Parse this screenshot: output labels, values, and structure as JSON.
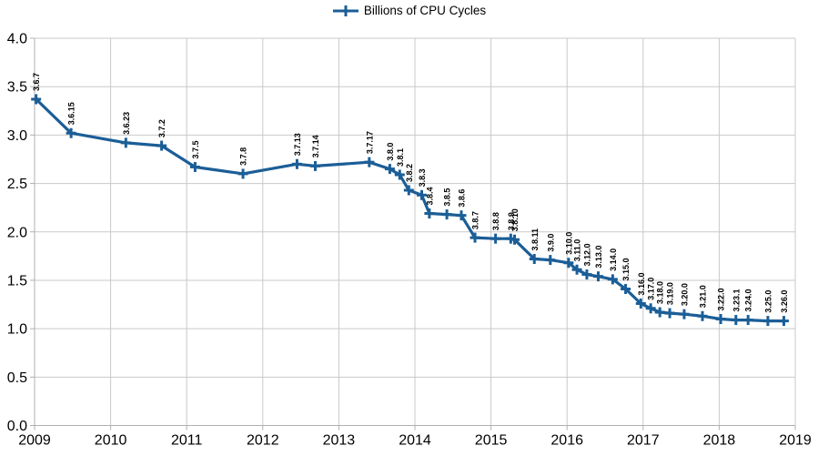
{
  "legend": {
    "label": "Billions of CPU Cycles"
  },
  "colors": {
    "series": "#1b5e97",
    "grid": "#c9c9c9",
    "axis": "#b0b0b0",
    "text": "#000000"
  },
  "chart_data": {
    "type": "line",
    "title": "",
    "xlabel": "",
    "ylabel": "",
    "series_name": "Billions of CPU Cycles",
    "legend_position": "top-center",
    "grid": true,
    "marker": "plus",
    "xlim": [
      2009,
      2019
    ],
    "ylim": [
      0,
      4
    ],
    "x_ticks": [
      2009,
      2010,
      2011,
      2012,
      2013,
      2014,
      2015,
      2016,
      2017,
      2018,
      2019
    ],
    "y_ticks": [
      "0.0",
      "0.5",
      "1.0",
      "1.5",
      "2.0",
      "2.5",
      "3.0",
      "3.5",
      "4.0"
    ],
    "points": [
      {
        "label": "3.6.7",
        "x": 2009.02,
        "y": 3.37
      },
      {
        "label": "3.6.15",
        "x": 2009.48,
        "y": 3.02
      },
      {
        "label": "3.6.23",
        "x": 2010.2,
        "y": 2.92
      },
      {
        "label": "3.7.2",
        "x": 2010.67,
        "y": 2.89
      },
      {
        "label": "3.7.5",
        "x": 2011.11,
        "y": 2.67
      },
      {
        "label": "3.7.8",
        "x": 2011.74,
        "y": 2.6
      },
      {
        "label": "3.7.13",
        "x": 2012.45,
        "y": 2.7
      },
      {
        "label": "3.7.14",
        "x": 2012.69,
        "y": 2.68
      },
      {
        "label": "3.7.17",
        "x": 2013.4,
        "y": 2.72
      },
      {
        "label": "3.8.0",
        "x": 2013.67,
        "y": 2.65
      },
      {
        "label": "3.8.1",
        "x": 2013.8,
        "y": 2.59
      },
      {
        "label": "3.8.2",
        "x": 2013.92,
        "y": 2.43
      },
      {
        "label": "3.8.3",
        "x": 2014.09,
        "y": 2.38
      },
      {
        "label": "3.8.4",
        "x": 2014.19,
        "y": 2.19
      },
      {
        "label": "3.8.5",
        "x": 2014.42,
        "y": 2.18
      },
      {
        "label": "3.8.6",
        "x": 2014.61,
        "y": 2.17
      },
      {
        "label": "3.8.7",
        "x": 2014.79,
        "y": 1.94
      },
      {
        "label": "3.8.8",
        "x": 2015.06,
        "y": 1.93
      },
      {
        "label": "3.8.9",
        "x": 2015.26,
        "y": 1.93
      },
      {
        "label": "3.8.10",
        "x": 2015.31,
        "y": 1.92
      },
      {
        "label": "3.8.11",
        "x": 2015.57,
        "y": 1.72
      },
      {
        "label": "3.9.0",
        "x": 2015.78,
        "y": 1.71
      },
      {
        "label": "3.10.0",
        "x": 2016.02,
        "y": 1.68
      },
      {
        "label": "3.11.0",
        "x": 2016.13,
        "y": 1.61
      },
      {
        "label": "3.12.0",
        "x": 2016.26,
        "y": 1.56
      },
      {
        "label": "3.13.0",
        "x": 2016.41,
        "y": 1.54
      },
      {
        "label": "3.14.0",
        "x": 2016.6,
        "y": 1.51
      },
      {
        "label": "3.15.0",
        "x": 2016.77,
        "y": 1.41
      },
      {
        "label": "3.16.0",
        "x": 2016.97,
        "y": 1.26
      },
      {
        "label": "3.17.0",
        "x": 2017.1,
        "y": 1.21
      },
      {
        "label": "3.18.0",
        "x": 2017.22,
        "y": 1.17
      },
      {
        "label": "3.19.0",
        "x": 2017.35,
        "y": 1.16
      },
      {
        "label": "3.20.0",
        "x": 2017.54,
        "y": 1.15
      },
      {
        "label": "3.21.0",
        "x": 2017.78,
        "y": 1.13
      },
      {
        "label": "3.22.0",
        "x": 2018.02,
        "y": 1.1
      },
      {
        "label": "3.23.1",
        "x": 2018.22,
        "y": 1.09
      },
      {
        "label": "3.24.0",
        "x": 2018.38,
        "y": 1.09
      },
      {
        "label": "3.25.0",
        "x": 2018.64,
        "y": 1.08
      },
      {
        "label": "3.26.0",
        "x": 2018.85,
        "y": 1.08
      }
    ]
  }
}
